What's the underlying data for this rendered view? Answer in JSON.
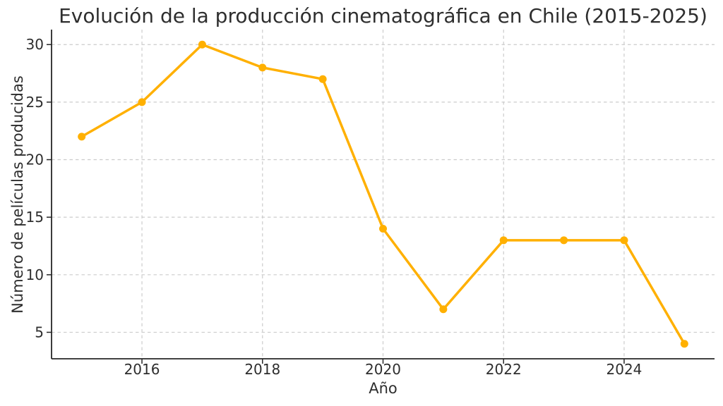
{
  "chart_data": {
    "type": "line",
    "title": "Evolución de la producción cinematográfica en Chile (2015-2025)",
    "xlabel": "Año",
    "ylabel": "Número de películas producidas",
    "x": [
      2015,
      2016,
      2017,
      2018,
      2019,
      2020,
      2021,
      2022,
      2023,
      2024,
      2025
    ],
    "values": [
      22,
      25,
      30,
      28,
      27,
      14,
      7,
      13,
      13,
      13,
      4
    ],
    "series_name": "Número de películas producidas",
    "xticks": [
      2016,
      2018,
      2020,
      2022,
      2024
    ],
    "yticks": [
      5,
      10,
      15,
      20,
      25,
      30
    ],
    "xlim": [
      2014.5,
      2025.5
    ],
    "ylim": [
      2.7,
      31.3
    ],
    "grid": true,
    "grid_style": "dashed",
    "legend_position": "none",
    "line_color": "#FFB000",
    "marker": "circle",
    "marker_radius": 5.5,
    "background_color": "#FFFFFF",
    "text_color": "#2e2e2e",
    "grid_color": "#cccccc",
    "spine_color": "#262626"
  }
}
